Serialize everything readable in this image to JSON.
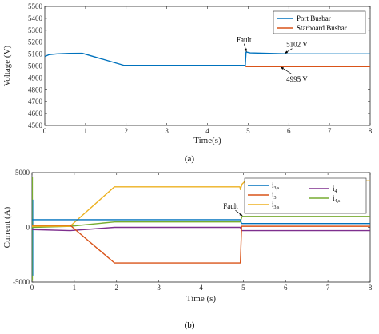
{
  "chart_data": [
    {
      "type": "line",
      "caption": "(a)",
      "xlabel": "Time(s)",
      "ylabel": "Voltage (V)",
      "xlim": [
        0,
        8
      ],
      "ylim": [
        4500,
        5500
      ],
      "xticks": [
        0,
        1,
        2,
        3,
        4,
        5,
        6,
        7,
        8
      ],
      "yticks": [
        4500,
        4600,
        4700,
        4800,
        4900,
        5000,
        5100,
        5200,
        5300,
        5400,
        5500
      ],
      "grid": false,
      "legend_position": "top-right",
      "series": [
        {
          "name": "Port Busbar",
          "color": "#0072BD",
          "points": [
            [
              0,
              5080
            ],
            [
              0.1,
              5095
            ],
            [
              0.3,
              5102
            ],
            [
              0.6,
              5106
            ],
            [
              0.92,
              5107
            ],
            [
              1.95,
              5005
            ],
            [
              4.93,
              5005
            ],
            [
              4.95,
              5118
            ],
            [
              5.05,
              5110
            ],
            [
              6,
              5102
            ],
            [
              8,
              5102
            ]
          ]
        },
        {
          "name": "Starboard Busbar",
          "color": "#D95319",
          "points": [
            [
              4.93,
              5005
            ],
            [
              4.95,
              4995
            ],
            [
              8,
              4995
            ]
          ]
        }
      ],
      "annotations": [
        {
          "text": "Fault",
          "x": 4.9,
          "y": 5200,
          "target": [
            4.96,
            5120
          ]
        },
        {
          "text": "5102 V",
          "x": 6.2,
          "y": 5160,
          "target": [
            5.9,
            5106
          ]
        },
        {
          "text": "4995 V",
          "x": 6.2,
          "y": 4870,
          "target": [
            5.8,
            4992
          ]
        }
      ]
    },
    {
      "type": "line",
      "caption": "(b)",
      "xlabel": "Time (s)",
      "ylabel": "Current (A)",
      "xlim": [
        0,
        8
      ],
      "ylim": [
        -5000,
        5000
      ],
      "xticks": [
        0,
        1,
        2,
        3,
        4,
        5,
        6,
        7,
        8
      ],
      "yticks": [
        -5000,
        0,
        5000
      ],
      "grid": false,
      "legend_position": "top-right",
      "series": [
        {
          "name": "i",
          "subscript": "3,s",
          "color": "#0072BD",
          "points": [
            [
              0,
              700
            ],
            [
              4.93,
              700
            ],
            [
              4.96,
              350
            ],
            [
              8,
              350
            ]
          ]
        },
        {
          "name": "i",
          "subscript": "3",
          "color": "#D95319",
          "points": [
            [
              0,
              200
            ],
            [
              0.9,
              200
            ],
            [
              1.95,
              -3250
            ],
            [
              4.93,
              -3250
            ],
            [
              4.96,
              100
            ],
            [
              8,
              100
            ]
          ]
        },
        {
          "name": "i",
          "subscript": "3,s",
          "color": "#EDB120",
          "points": [
            [
              0,
              100
            ],
            [
              0.9,
              100
            ],
            [
              1.95,
              3700
            ],
            [
              4.92,
              3700
            ],
            [
              4.93,
              3450
            ],
            [
              4.97,
              3950
            ],
            [
              5.05,
              4250
            ],
            [
              8,
              4250
            ]
          ]
        },
        {
          "name": "i",
          "subscript": "4",
          "color": "#7E2F8E",
          "points": [
            [
              0,
              -200
            ],
            [
              0.9,
              -300
            ],
            [
              1.95,
              0
            ],
            [
              4.93,
              0
            ],
            [
              4.96,
              -300
            ],
            [
              8,
              -300
            ]
          ]
        },
        {
          "name": "i",
          "subscript": "4,s",
          "color": "#77AC30",
          "points": [
            [
              0,
              0
            ],
            [
              0.9,
              100
            ],
            [
              1.95,
              500
            ],
            [
              4.93,
              500
            ],
            [
              4.97,
              1000
            ],
            [
              8,
              1000
            ]
          ]
        }
      ],
      "initial_transient": {
        "times": [
          0,
          0.01,
          0.02,
          0.05
        ],
        "min": -4900,
        "max": 4600
      },
      "annotations": [
        {
          "text": "Fault",
          "x": 4.7,
          "y": 1700,
          "target": [
            4.98,
            1050
          ]
        }
      ]
    }
  ]
}
